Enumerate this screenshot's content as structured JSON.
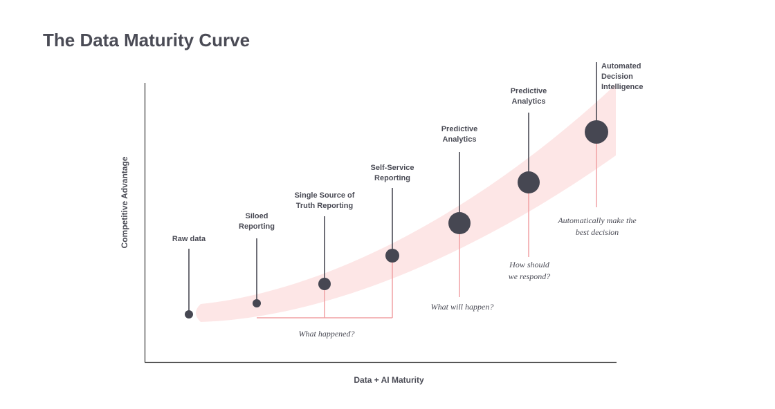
{
  "title": "The Data Maturity Curve",
  "x_axis_label": "Data + AI Maturity",
  "y_axis_label": "Competitive Advantage",
  "stages": [
    {
      "label": [
        "Raw data"
      ]
    },
    {
      "label": [
        "Siloed",
        "Reporting"
      ]
    },
    {
      "label": [
        "Single Source of",
        "Truth Reporting"
      ]
    },
    {
      "label": [
        "Self-Service",
        "Reporting"
      ]
    },
    {
      "label": [
        "Predictive",
        "Analytics"
      ]
    },
    {
      "label": [
        "Predictive",
        "Analytics"
      ]
    },
    {
      "label": [
        "Automated",
        "Decision",
        "Intelligence"
      ]
    }
  ],
  "annotations": [
    {
      "text": [
        "What happened?"
      ]
    },
    {
      "text": [
        "What will happen?"
      ]
    },
    {
      "text": [
        "How should",
        "we respond?"
      ]
    },
    {
      "text": [
        "Automatically make the",
        "best decision"
      ]
    }
  ]
}
